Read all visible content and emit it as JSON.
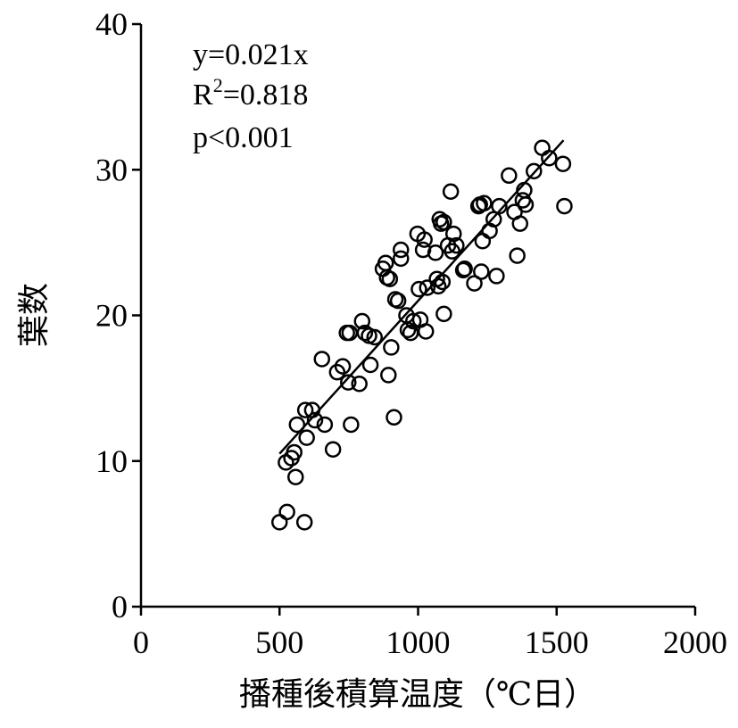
{
  "chart_data": {
    "type": "scatter",
    "title": "",
    "xlabel": "播種後積算温度（℃日）",
    "ylabel": "葉数",
    "xlim": [
      0,
      2000
    ],
    "ylim": [
      0,
      40
    ],
    "xticks": [
      "0",
      "500",
      "1000",
      "1500",
      "2000"
    ],
    "yticks": [
      "0",
      "10",
      "20",
      "30",
      "40"
    ],
    "grid": false,
    "legend": "none",
    "marker": "open-circle",
    "annotations": {
      "equation": "y=0.021x",
      "r2_prefix": "R",
      "r2_sup": "2",
      "r2_value": "=0.818",
      "pvalue": "p<0.001"
    },
    "trendline": {
      "slope": 0.021,
      "x_start": 500,
      "x_end": 1525
    },
    "points": [
      [
        500,
        5.8
      ],
      [
        527,
        6.5
      ],
      [
        590,
        5.8
      ],
      [
        523,
        9.9
      ],
      [
        543,
        10.2
      ],
      [
        553,
        10.6
      ],
      [
        558,
        8.9
      ],
      [
        563,
        12.5
      ],
      [
        593,
        13.5
      ],
      [
        598,
        11.6
      ],
      [
        618,
        13.5
      ],
      [
        628,
        12.8
      ],
      [
        653,
        17.0
      ],
      [
        663,
        12.5
      ],
      [
        693,
        10.8
      ],
      [
        708,
        16.1
      ],
      [
        728,
        16.5
      ],
      [
        743,
        18.8
      ],
      [
        748,
        15.4
      ],
      [
        753,
        18.8
      ],
      [
        758,
        12.5
      ],
      [
        788,
        15.3
      ],
      [
        798,
        19.6
      ],
      [
        808,
        18.8
      ],
      [
        823,
        18.6
      ],
      [
        828,
        16.6
      ],
      [
        843,
        18.5
      ],
      [
        873,
        23.2
      ],
      [
        883,
        23.6
      ],
      [
        888,
        22.6
      ],
      [
        893,
        15.9
      ],
      [
        898,
        22.5
      ],
      [
        903,
        17.8
      ],
      [
        913,
        13.0
      ],
      [
        918,
        21.1
      ],
      [
        928,
        21.0
      ],
      [
        938,
        24.5
      ],
      [
        938,
        23.9
      ],
      [
        958,
        20.0
      ],
      [
        963,
        19.0
      ],
      [
        973,
        18.8
      ],
      [
        983,
        19.6
      ],
      [
        998,
        25.6
      ],
      [
        1003,
        21.8
      ],
      [
        1008,
        19.7
      ],
      [
        1018,
        24.5
      ],
      [
        1023,
        25.2
      ],
      [
        1028,
        18.9
      ],
      [
        1033,
        21.9
      ],
      [
        1063,
        24.3
      ],
      [
        1068,
        22.5
      ],
      [
        1073,
        22.0
      ],
      [
        1078,
        26.6
      ],
      [
        1083,
        26.3
      ],
      [
        1088,
        22.3
      ],
      [
        1093,
        20.1
      ],
      [
        1093,
        26.4
      ],
      [
        1108,
        24.8
      ],
      [
        1118,
        28.5
      ],
      [
        1123,
        24.4
      ],
      [
        1128,
        25.6
      ],
      [
        1138,
        24.8
      ],
      [
        1163,
        23.1
      ],
      [
        1168,
        23.2
      ],
      [
        1203,
        22.2
      ],
      [
        1218,
        27.5
      ],
      [
        1223,
        27.6
      ],
      [
        1228,
        23.0
      ],
      [
        1233,
        25.1
      ],
      [
        1238,
        27.7
      ],
      [
        1258,
        25.8
      ],
      [
        1273,
        26.6
      ],
      [
        1283,
        22.7
      ],
      [
        1293,
        27.5
      ],
      [
        1328,
        29.6
      ],
      [
        1348,
        27.1
      ],
      [
        1358,
        24.1
      ],
      [
        1368,
        26.3
      ],
      [
        1378,
        27.9
      ],
      [
        1383,
        28.6
      ],
      [
        1388,
        27.6
      ],
      [
        1418,
        29.9
      ],
      [
        1448,
        31.5
      ],
      [
        1473,
        30.8
      ],
      [
        1523,
        30.4
      ],
      [
        1528,
        27.5
      ]
    ]
  }
}
